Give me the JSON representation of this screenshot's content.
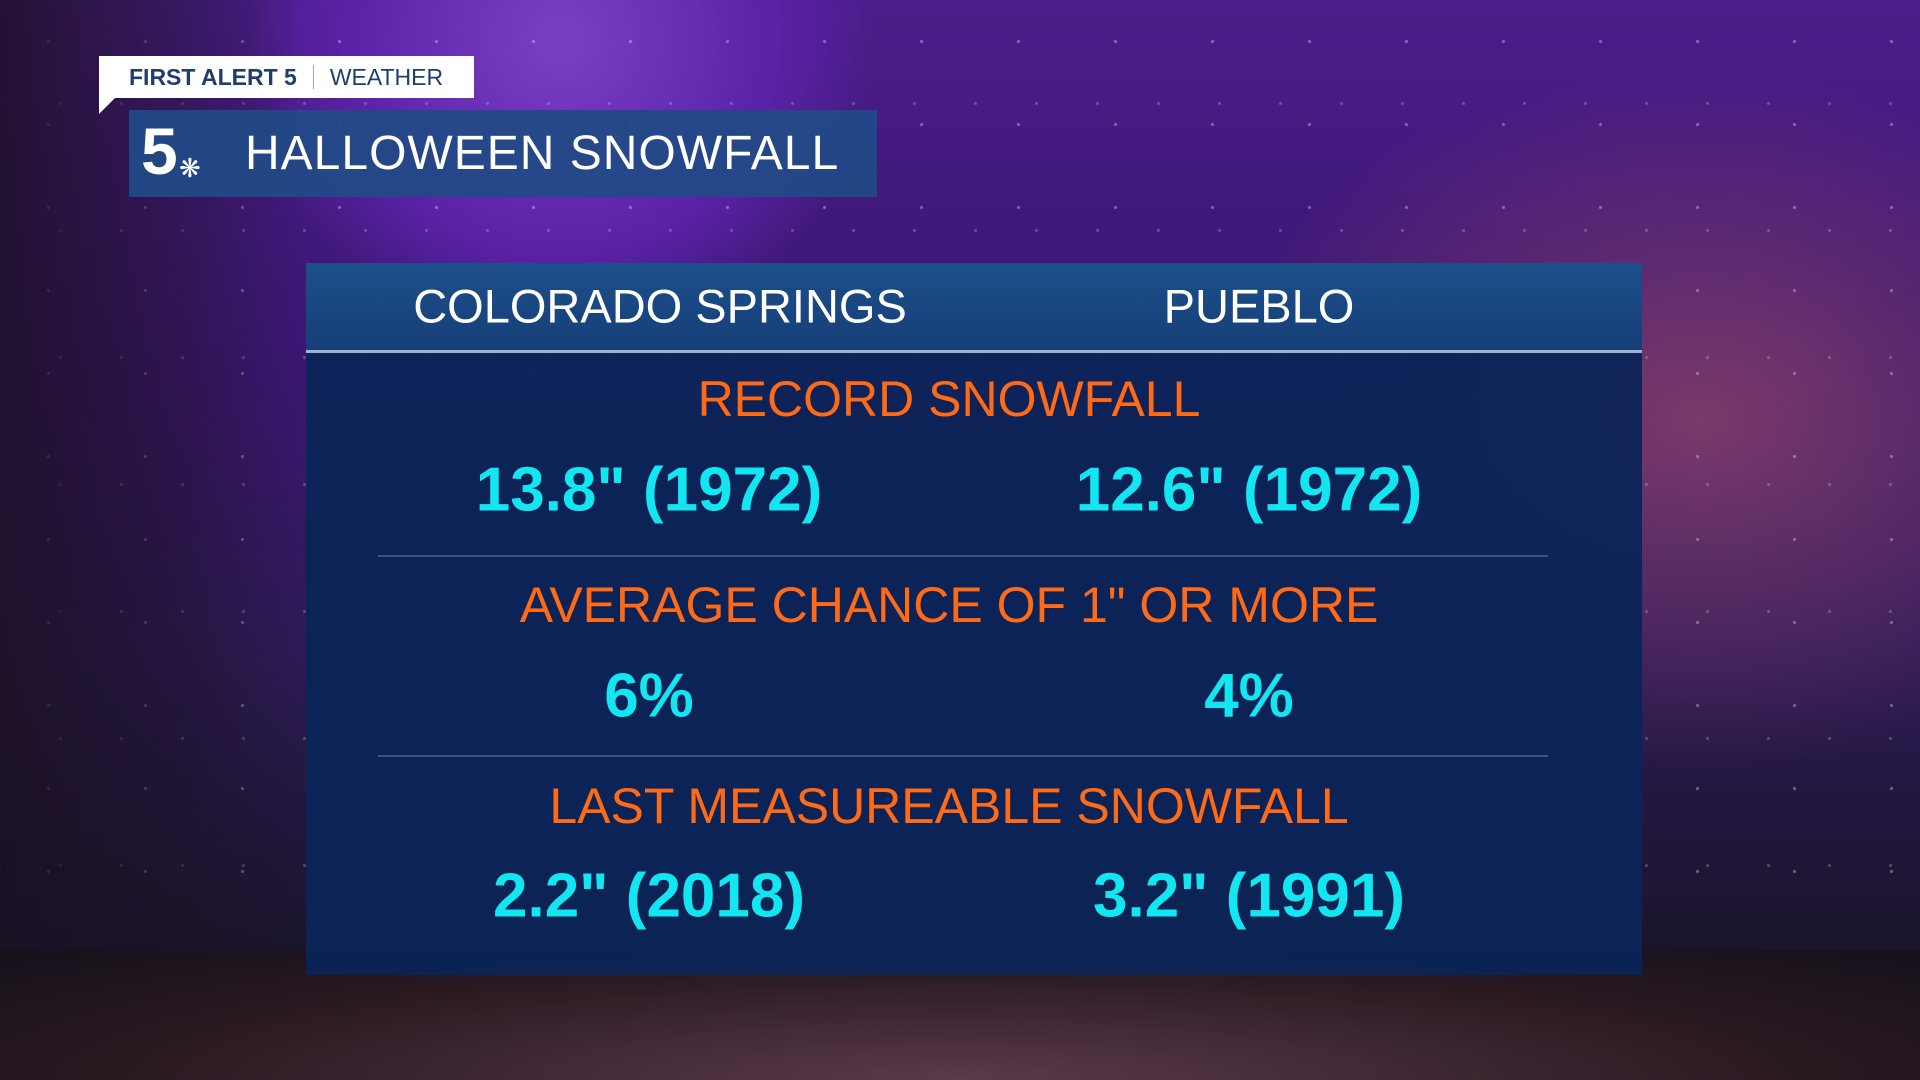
{
  "brand": {
    "tag_bold": "FIRST ALERT 5",
    "tag_light": "WEATHER",
    "logo_text": "5",
    "logo_icon": "nbc-peacock-icon"
  },
  "title": "HALLOWEEN SNOWFALL",
  "columns": [
    "COLORADO SPRINGS",
    "PUEBLO"
  ],
  "rows": [
    {
      "label": "RECORD SNOWFALL",
      "values": [
        "13.8\" (1972)",
        "12.6\" (1972)"
      ]
    },
    {
      "label": "AVERAGE CHANCE OF 1\" OR MORE",
      "values": [
        "6%",
        "4%"
      ]
    },
    {
      "label": "LAST MEASUREABLE SNOWFALL",
      "values": [
        "2.2\" (2018)",
        "3.2\" (1991)"
      ]
    }
  ],
  "colors": {
    "label": "#ff6a16",
    "value": "#12e6f0",
    "panel": "#0b2457",
    "header": "#1c4f8a"
  }
}
